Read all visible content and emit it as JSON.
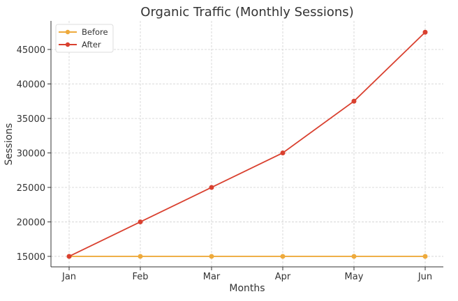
{
  "chart_data": {
    "type": "line",
    "title": "Organic Traffic (Monthly Sessions)",
    "xlabel": "Months",
    "ylabel": "Sessions",
    "categories": [
      "Jan",
      "Feb",
      "Mar",
      "Apr",
      "May",
      "Jun"
    ],
    "series": [
      {
        "name": "Before",
        "color": "#eeaa3c",
        "values": [
          15000,
          15000,
          15000,
          15000,
          15000,
          15000
        ]
      },
      {
        "name": "After",
        "color": "#d9402f",
        "values": [
          15000,
          20000,
          25000,
          30000,
          37500,
          47500
        ]
      }
    ],
    "yticks": [
      15000,
      20000,
      25000,
      30000,
      35000,
      40000,
      45000
    ],
    "ytick_labels": [
      "15000",
      "20000",
      "25000",
      "30000",
      "35000",
      "40000",
      "45000"
    ],
    "ylim": [
      13480,
      49140
    ],
    "xlim": [
      -0.255,
      5.255
    ],
    "grid": true,
    "legend_position": "top-left"
  }
}
